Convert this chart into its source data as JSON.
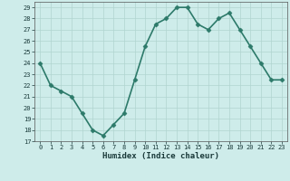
{
  "xlabel": "Humidex (Indice chaleur)",
  "x": [
    0,
    1,
    2,
    3,
    4,
    5,
    6,
    7,
    8,
    9,
    10,
    11,
    12,
    13,
    14,
    15,
    16,
    17,
    18,
    19,
    20,
    21,
    22,
    23
  ],
  "y": [
    24,
    22,
    21.5,
    21,
    19.5,
    18,
    17.5,
    18.5,
    19.5,
    22.5,
    25.5,
    27.5,
    28,
    29,
    29,
    27.5,
    27,
    28,
    28.5,
    27,
    25.5,
    24,
    22.5,
    22.5
  ],
  "line_color": "#2d7a6a",
  "marker": "D",
  "marker_size": 2.5,
  "bg_color": "#ceecea",
  "grid_color": "#b0d4d0",
  "tick_label_color": "#1a3a3a",
  "axis_label_color": "#1a3a3a",
  "ylim": [
    17,
    29.5
  ],
  "yticks": [
    17,
    18,
    19,
    20,
    21,
    22,
    23,
    24,
    25,
    26,
    27,
    28,
    29
  ],
  "xticks": [
    0,
    1,
    2,
    3,
    4,
    5,
    6,
    7,
    8,
    9,
    10,
    11,
    12,
    13,
    14,
    15,
    16,
    17,
    18,
    19,
    20,
    21,
    22,
    23
  ],
  "linewidth": 1.2,
  "figwidth": 3.2,
  "figheight": 2.0,
  "dpi": 100
}
